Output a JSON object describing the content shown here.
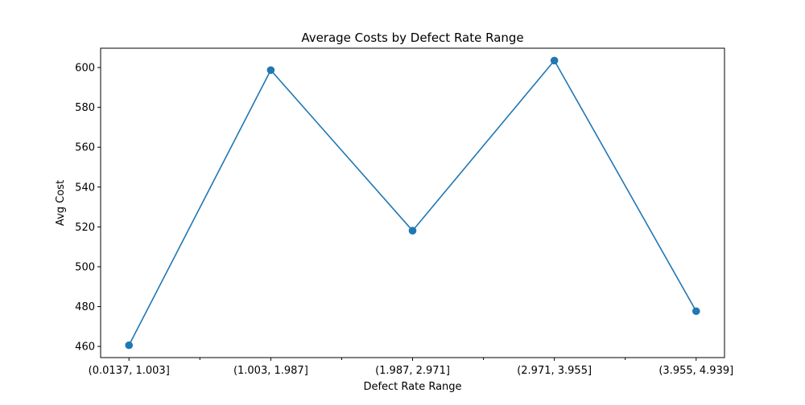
{
  "chart_data": {
    "type": "line",
    "title": "Average Costs by Defect Rate Range",
    "xlabel": "Defect Rate Range",
    "ylabel": "Avg Cost",
    "categories": [
      "(0.0137, 1.003]",
      "(1.003, 1.987]",
      "(1.987, 2.971]",
      "(2.971, 3.955]",
      "(3.955, 4.939]"
    ],
    "series": [
      {
        "values": [
          460.6,
          598.7,
          518.1,
          603.5,
          477.7
        ]
      }
    ],
    "ylim": [
      454.4,
      609.7
    ],
    "yticks": [
      460,
      480,
      500,
      520,
      540,
      560,
      580,
      600
    ],
    "grid": false,
    "markers": true,
    "colors": {
      "line": "#1f77b4",
      "axis": "#000000",
      "background": "#ffffff"
    }
  }
}
